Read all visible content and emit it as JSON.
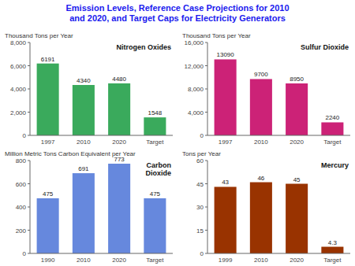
{
  "title": "Emission Levels, Reference Case Projections for 2010\nand 2020, and Target Caps for Electricity Generators",
  "title_color": "#1a1aee",
  "chart_data": [
    {
      "type": "bar",
      "title": "Nitrogen Oxides",
      "ylabel": "Thousand Tons per Year",
      "categories": [
        "1997",
        "2010",
        "2020",
        "Target"
      ],
      "values": [
        6191,
        4340,
        4480,
        1548
      ],
      "color": "#3aaa5c",
      "ylim": [
        0,
        8000
      ],
      "yticks": [
        0,
        {
          "value": 2000,
          "label": "2,000"
        },
        {
          "value": 4000,
          "label": "4,000"
        },
        {
          "value": 6000,
          "label": "6,000"
        },
        {
          "value": 8000,
          "label": "8,000"
        }
      ],
      "data_labels": true,
      "grid": false
    },
    {
      "type": "bar",
      "title": "Sulfur Dioxide",
      "ylabel": "Thousand Tons per Year",
      "categories": [
        "1997",
        "2010",
        "2020",
        "Target"
      ],
      "values": [
        13090,
        9700,
        8950,
        2240
      ],
      "color": "#cc2277",
      "ylim": [
        0,
        16000
      ],
      "yticks": [
        0,
        {
          "value": 4000,
          "label": "4,000"
        },
        {
          "value": 8000,
          "label": "8,000"
        },
        {
          "value": 12000,
          "label": "12,000"
        },
        {
          "value": 16000,
          "label": "16,000"
        }
      ],
      "data_labels": true,
      "grid": false
    },
    {
      "type": "bar",
      "title": "Carbon\nDioxide",
      "ylabel": "Million Metric Tons Carbon Equivalent per Year",
      "categories": [
        "1990",
        "2010",
        "2020",
        "Target"
      ],
      "values": [
        475,
        691,
        773,
        475
      ],
      "color": "#6688dd",
      "ylim": [
        0,
        800
      ],
      "yticks": [
        0,
        200,
        400,
        600,
        800
      ],
      "data_labels": true,
      "grid": false
    },
    {
      "type": "bar",
      "title": "Mercury",
      "ylabel": "Tons per Year",
      "categories": [
        "1999",
        "2010",
        "2020",
        "Target"
      ],
      "values": [
        43,
        46,
        45,
        4.3
      ],
      "color": "#993300",
      "ylim": [
        0,
        60
      ],
      "yticks": [
        0,
        15,
        30,
        45,
        60
      ],
      "data_labels": true,
      "grid": false
    }
  ]
}
